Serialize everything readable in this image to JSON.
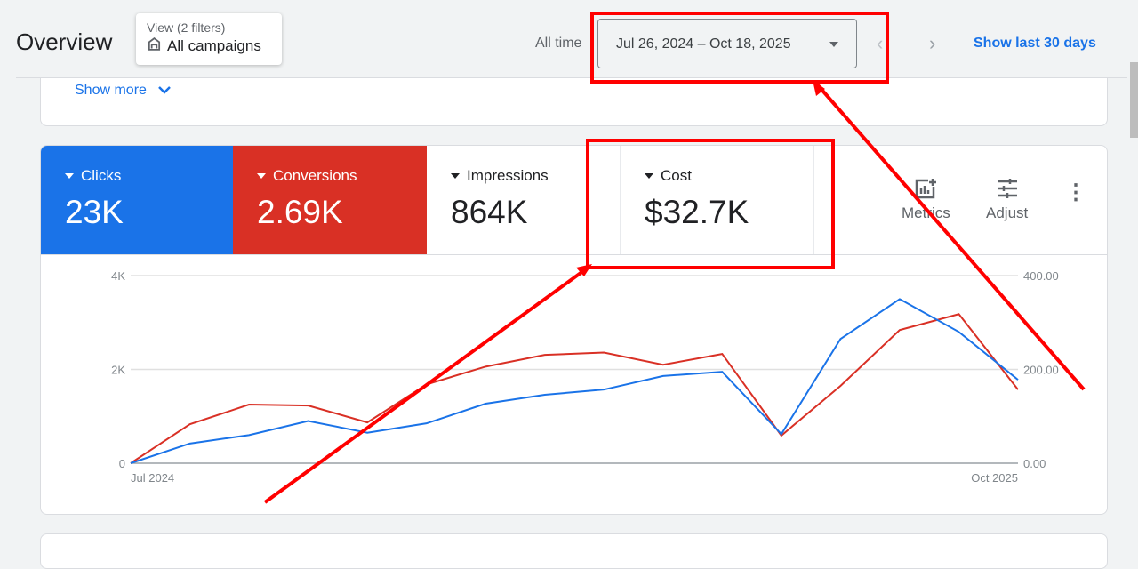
{
  "header": {
    "title": "Overview",
    "view_label": "View (2 filters)",
    "view_value": "All campaigns",
    "all_time": "All time",
    "date_range": "Jul 26, 2024 – Oct 18, 2025",
    "show_last": "Show last 30 days"
  },
  "summary": {
    "show_more": "Show more"
  },
  "metrics": [
    {
      "label": "Clicks",
      "value": "23K",
      "color": "#1a73e8"
    },
    {
      "label": "Conversions",
      "value": "2.69K",
      "color": "#d93025"
    },
    {
      "label": "Impressions",
      "value": "864K"
    },
    {
      "label": "Cost",
      "value": "$32.7K"
    }
  ],
  "toolbar": {
    "metrics": "Metrics",
    "adjust": "Adjust"
  },
  "chart_data": {
    "type": "line",
    "x_start_label": "Jul 2024",
    "x_end_label": "Oct 2025",
    "left_axis": {
      "ticks": [
        "0",
        "2K",
        "4K"
      ],
      "range": [
        0,
        4000
      ]
    },
    "right_axis": {
      "ticks": [
        "0.00",
        "200.00",
        "400.00"
      ],
      "range": [
        0,
        400
      ]
    },
    "series": [
      {
        "name": "Clicks",
        "axis": "left",
        "color": "#1a73e8",
        "values": [
          0,
          420,
          600,
          900,
          650,
          850,
          1270,
          1460,
          1570,
          1860,
          1950,
          620,
          2650,
          3500,
          2800,
          1780
        ]
      },
      {
        "name": "Conversions",
        "axis": "right",
        "color": "#d93025",
        "values": [
          0,
          83,
          125,
          123,
          87,
          168,
          206,
          231,
          236,
          210,
          233,
          59,
          165,
          284,
          318,
          157
        ]
      }
    ]
  }
}
